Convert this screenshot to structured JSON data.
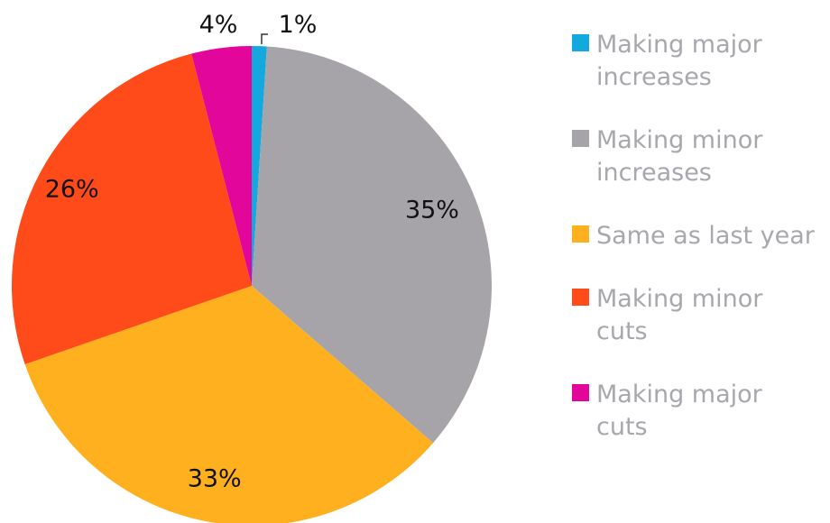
{
  "chart_data": {
    "type": "pie",
    "slices": [
      {
        "label": "Making major increases",
        "value": 1,
        "display": "1%",
        "color": "#13a9df"
      },
      {
        "label": "Making minor increases",
        "value": 35,
        "display": "35%",
        "color": "#a6a4a9"
      },
      {
        "label": "Same as last year",
        "value": 33,
        "display": "33%",
        "color": "#ffb01f"
      },
      {
        "label": "Making minor cuts",
        "value": 26,
        "display": "26%",
        "color": "#ff4b19"
      },
      {
        "label": "Making major cuts",
        "value": 4,
        "display": "4%",
        "color": "#e2069a"
      }
    ],
    "legend_position": "right",
    "label_color": "#111111",
    "legend_text_color": "#a7a7ad"
  }
}
